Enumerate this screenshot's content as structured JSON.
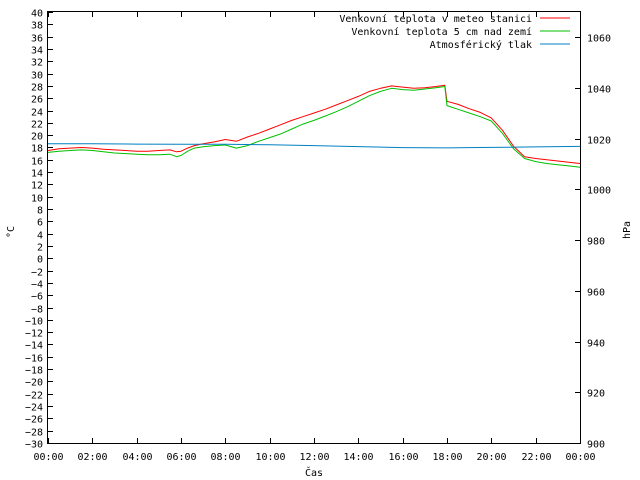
{
  "chart_data": {
    "type": "line",
    "xlabel": "Čas",
    "ylabel_left": "°C",
    "ylabel_right": "hPa",
    "x_ticks": [
      "00:00",
      "02:00",
      "04:00",
      "06:00",
      "08:00",
      "10:00",
      "12:00",
      "14:00",
      "16:00",
      "18:00",
      "20:00",
      "22:00",
      "00:00"
    ],
    "xlim_hours": [
      0,
      24
    ],
    "ylim_left": [
      -30,
      40
    ],
    "y_left_step": 2,
    "ylim_right": [
      900,
      1070
    ],
    "y_right_ticks": [
      900,
      920,
      940,
      960,
      980,
      1000,
      1020,
      1040,
      1060
    ],
    "grid": false,
    "legend_position": "top-right",
    "series": [
      {
        "name": "Venkovní teplota v meteo stanici",
        "color": "#ff0000",
        "axis": "left",
        "x": [
          0,
          0.5,
          1,
          1.5,
          2,
          2.5,
          3,
          3.5,
          4,
          4.5,
          5,
          5.5,
          5.8,
          6,
          6.3,
          6.6,
          7,
          7.5,
          8,
          8.5,
          9,
          9.5,
          10,
          10.5,
          11,
          11.5,
          12,
          12.5,
          13,
          13.5,
          14,
          14.5,
          15,
          15.5,
          16,
          16.5,
          17,
          17.5,
          17.9,
          18,
          18.5,
          19,
          19.5,
          20,
          20.5,
          21,
          21.5,
          22,
          22.5,
          23,
          23.5,
          24
        ],
        "values": [
          17.5,
          17.8,
          17.9,
          18.0,
          17.9,
          17.7,
          17.6,
          17.5,
          17.4,
          17.4,
          17.5,
          17.6,
          17.3,
          17.4,
          17.9,
          18.3,
          18.6,
          18.9,
          19.3,
          19.0,
          19.7,
          20.3,
          21.0,
          21.7,
          22.4,
          23.0,
          23.6,
          24.2,
          24.9,
          25.6,
          26.3,
          27.1,
          27.6,
          28.0,
          27.8,
          27.6,
          27.7,
          27.9,
          28.1,
          25.5,
          25.0,
          24.3,
          23.7,
          22.8,
          20.8,
          18.2,
          16.5,
          16.2,
          16.0,
          15.8,
          15.6,
          15.4
        ]
      },
      {
        "name": "Venkovní teplota 5 cm nad zemí",
        "color": "#00c000",
        "axis": "left",
        "x": [
          0,
          0.5,
          1,
          1.5,
          2,
          2.5,
          3,
          3.5,
          4,
          4.5,
          5,
          5.5,
          5.8,
          6,
          6.3,
          6.6,
          7,
          7.5,
          8,
          8.5,
          9,
          9.5,
          10,
          10.5,
          11,
          11.5,
          12,
          12.5,
          13,
          13.5,
          14,
          14.5,
          15,
          15.5,
          16,
          16.5,
          17,
          17.5,
          17.9,
          18,
          18.5,
          19,
          19.5,
          20,
          20.5,
          21,
          21.5,
          22,
          22.5,
          23,
          23.5,
          24
        ],
        "values": [
          17.2,
          17.4,
          17.5,
          17.6,
          17.5,
          17.3,
          17.1,
          17.0,
          16.9,
          16.8,
          16.8,
          16.9,
          16.5,
          16.7,
          17.4,
          17.9,
          18.1,
          18.3,
          18.4,
          17.9,
          18.3,
          19.0,
          19.6,
          20.2,
          21.0,
          21.8,
          22.4,
          23.1,
          23.8,
          24.6,
          25.5,
          26.4,
          27.1,
          27.6,
          27.4,
          27.3,
          27.5,
          27.7,
          27.9,
          24.8,
          24.2,
          23.6,
          23.0,
          22.3,
          20.3,
          17.8,
          16.2,
          15.7,
          15.4,
          15.2,
          15.0,
          14.8
        ]
      },
      {
        "name": "Atmosférický tlak",
        "color": "#0080c0",
        "axis": "right",
        "x": [
          0,
          2,
          4,
          6,
          8,
          10,
          12,
          14,
          16,
          18,
          20,
          22,
          24
        ],
        "values": [
          1018.0,
          1018.0,
          1017.9,
          1017.8,
          1017.8,
          1017.6,
          1017.3,
          1016.9,
          1016.5,
          1016.4,
          1016.6,
          1016.8,
          1017.0
        ]
      }
    ]
  }
}
